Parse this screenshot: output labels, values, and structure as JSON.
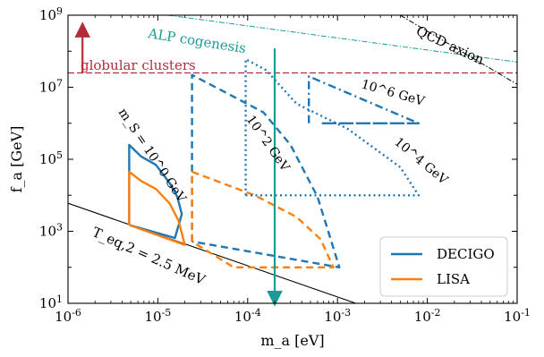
{
  "chart_data": {
    "type": "line",
    "xscale": "log",
    "yscale": "log",
    "xlim": [
      1e-06,
      0.1
    ],
    "ylim": [
      10,
      1000000000.0
    ],
    "xlabel": "m_a [eV]",
    "ylabel": "f_a [GeV]",
    "x_tick_labels": [
      "10^-6",
      "10^-5",
      "10^-4",
      "10^-3",
      "10^-2",
      "10^-1"
    ],
    "y_tick_labels": [
      "10^1",
      "10^3",
      "10^5",
      "10^7",
      "10^9"
    ],
    "legend": {
      "placement": "bottom-right",
      "entries": [
        "DECIGO",
        "LISA"
      ]
    },
    "colors": {
      "decigo": "#1f77b4",
      "lisa": "#ff7f0e",
      "clusters": "#b22d3a",
      "alp": "#1a9b96",
      "qcd": "#000000"
    },
    "annotations": {
      "alp": "ALP cogenesis",
      "qcd": "QCD axion",
      "clusters": "globular clusters",
      "teq": "T_eq,2 = 2.5 MeV",
      "ms": "m_S = 10^0 GeV",
      "ms2": "10^2 GeV",
      "ms4": "10^4 GeV",
      "ms6": "10^6 GeV"
    },
    "series": [
      {
        "name": "DECIGO",
        "style": "solid",
        "color": "#1f77b4",
        "x": [
          4.8e-06,
          4.8e-06,
          6.5e-06,
          9.5e-06,
          1.35e-05,
          1.65e-05,
          1.85e-05,
          1.55e-05,
          4.8e-06
        ],
        "y": [
          1500,
          250000,
          120000,
          70000,
          22000,
          9000,
          3000,
          650,
          1500
        ]
      },
      {
        "name": "LISA",
        "style": "solid",
        "color": "#ff7f0e",
        "x": [
          4.8e-06,
          4.8e-06,
          6.5e-06,
          9.5e-06,
          1.35e-05,
          1.7e-05,
          2e-05,
          2e-05,
          4.8e-06
        ],
        "y": [
          1500,
          45000,
          25000,
          15000,
          6000,
          2000,
          420,
          420,
          1500
        ]
      },
      {
        "style": "dashed",
        "color": "#1f77b4",
        "x": [
          2.4e-05,
          2.4e-05,
          0.00015,
          0.0003,
          0.0006,
          0.00105,
          2.4e-05
        ],
        "y": [
          520,
          22000000.0,
          2000000.0,
          250000.0,
          9000,
          100,
          520
        ]
      },
      {
        "style": "dashed",
        "color": "#ff7f0e",
        "x": [
          2.4e-05,
          2.4e-05,
          0.00012,
          0.00035,
          0.00065,
          0.0009,
          7e-05,
          2.4e-05
        ],
        "y": [
          520,
          45000,
          10000,
          2500,
          600,
          100,
          100,
          520
        ]
      },
      {
        "style": "dotted",
        "color": "#1f77b4",
        "x": [
          9.5e-05,
          9.5e-05,
          0.00016,
          0.00035,
          0.0013,
          0.005,
          0.008,
          9.5e-05
        ],
        "y": [
          10000,
          60000000.0,
          30000000.0,
          3500000.0,
          700000.0,
          60000,
          10000,
          10000
        ]
      },
      {
        "style": "dashdot",
        "color": "#1f77b4",
        "x": [
          0.00048,
          0.00048,
          0.008,
          0.00065,
          0.008
        ],
        "y": [
          1000000.0,
          20000000.0,
          1000000.0,
          1000000.0,
          1000000.0
        ]
      }
    ]
  }
}
